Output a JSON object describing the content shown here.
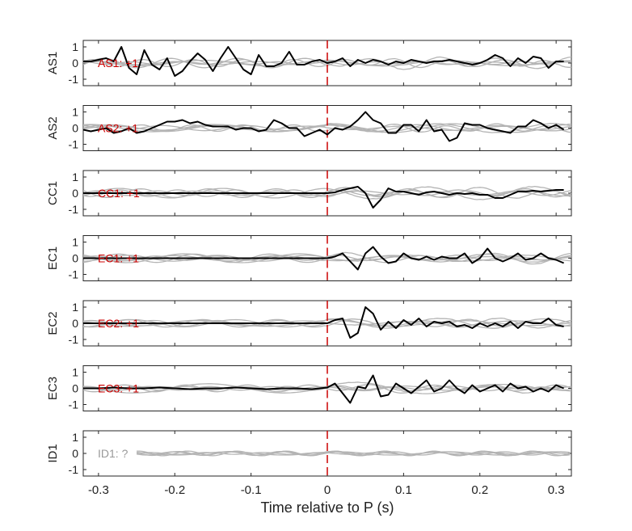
{
  "figure": {
    "xlabel": "Time relative to P (s)",
    "x_ticks": [
      "-0.3",
      "-0.2",
      "-0.1",
      "0",
      "0.1",
      "0.2",
      "0.3"
    ],
    "y_ticks": [
      "1",
      "0",
      "-1"
    ]
  },
  "colors": {
    "trace": "#000000",
    "background_traces": "#b4b4b4",
    "marker": "#cc0000",
    "polarity_label": "#cc0000",
    "unknown_label": "#999999"
  },
  "chart_data": {
    "type": "line",
    "xlim": [
      -0.32,
      0.32
    ],
    "ylim": [
      -1.4,
      1.4
    ],
    "p_arrival_x": 0,
    "panels": [
      {
        "ylabel": "AS1",
        "annotation": "AS1: +1",
        "main_x": [
          -0.32,
          -0.31,
          -0.3,
          -0.29,
          -0.28,
          -0.27,
          -0.26,
          -0.25,
          -0.24,
          -0.23,
          -0.22,
          -0.21,
          -0.2,
          -0.19,
          -0.18,
          -0.17,
          -0.16,
          -0.15,
          -0.14,
          -0.13,
          -0.12,
          -0.11,
          -0.1,
          -0.09,
          -0.08,
          -0.07,
          -0.06,
          -0.05,
          -0.04,
          -0.03,
          -0.02,
          -0.01,
          0,
          0.01,
          0.02,
          0.03,
          0.04,
          0.05,
          0.06,
          0.07,
          0.08,
          0.09,
          0.1,
          0.11,
          0.12,
          0.13,
          0.14,
          0.15,
          0.16,
          0.17,
          0.18,
          0.19,
          0.2,
          0.21,
          0.22,
          0.23,
          0.24,
          0.25,
          0.26,
          0.27,
          0.28,
          0.29,
          0.3,
          0.31
        ],
        "main_y": [
          0.1,
          0.1,
          0.2,
          0.3,
          0.1,
          1.0,
          -0.3,
          -0.7,
          0.8,
          -0.1,
          -0.4,
          0.3,
          -0.8,
          -0.5,
          0.1,
          0.6,
          0.2,
          -0.5,
          0.3,
          1.0,
          0.3,
          -0.4,
          -0.7,
          0.5,
          -0.2,
          -0.2,
          0.0,
          0.7,
          -0.1,
          -0.1,
          0.1,
          0.2,
          0.0,
          0.1,
          0.3,
          -0.2,
          0.2,
          0.0,
          0.2,
          0.1,
          -0.1,
          0.1,
          0.0,
          0.2,
          0.1,
          0.0,
          0.1,
          0.1,
          0.2,
          0.1,
          0.0,
          -0.1,
          0.0,
          0.2,
          0.5,
          0.3,
          -0.2,
          0.3,
          0.0,
          0.4,
          0.3,
          -0.3,
          0.1,
          0.1
        ]
      },
      {
        "ylabel": "AS2",
        "annotation": "AS2: +1",
        "main_x": [
          -0.32,
          -0.31,
          -0.3,
          -0.29,
          -0.28,
          -0.27,
          -0.26,
          -0.25,
          -0.24,
          -0.23,
          -0.22,
          -0.21,
          -0.2,
          -0.19,
          -0.18,
          -0.17,
          -0.16,
          -0.15,
          -0.14,
          -0.13,
          -0.12,
          -0.11,
          -0.1,
          -0.09,
          -0.08,
          -0.07,
          -0.06,
          -0.05,
          -0.04,
          -0.03,
          -0.02,
          -0.01,
          0,
          0.01,
          0.02,
          0.03,
          0.04,
          0.05,
          0.06,
          0.07,
          0.08,
          0.09,
          0.1,
          0.11,
          0.12,
          0.13,
          0.14,
          0.15,
          0.16,
          0.17,
          0.18,
          0.19,
          0.2,
          0.21,
          0.22,
          0.23,
          0.24,
          0.25,
          0.26,
          0.27,
          0.28,
          0.29,
          0.3,
          0.31
        ],
        "main_y": [
          -0.1,
          -0.2,
          -0.1,
          0.0,
          -0.3,
          -0.2,
          0.0,
          -0.3,
          -0.2,
          0.0,
          0.2,
          0.4,
          0.4,
          0.5,
          0.3,
          0.4,
          0.2,
          0.1,
          0.1,
          0.1,
          -0.1,
          0.0,
          0.0,
          -0.2,
          -0.1,
          0.5,
          0.3,
          0.0,
          0.0,
          -0.5,
          -0.3,
          -0.1,
          -0.4,
          0.0,
          -0.1,
          0.1,
          0.5,
          1.0,
          0.5,
          0.3,
          -0.3,
          -0.3,
          0.2,
          0.2,
          -0.2,
          0.5,
          -0.2,
          -0.1,
          -0.8,
          -0.6,
          0.3,
          0.2,
          0.2,
          0.0,
          -0.1,
          -0.2,
          -0.3,
          0.1,
          0.1,
          0.5,
          0.3,
          0.0,
          0.2,
          -0.1
        ]
      },
      {
        "ylabel": "CC1",
        "annotation": "CC1: +1",
        "main_x": [
          -0.32,
          -0.3,
          -0.28,
          -0.26,
          -0.24,
          -0.22,
          -0.2,
          -0.18,
          -0.16,
          -0.14,
          -0.12,
          -0.1,
          -0.08,
          -0.06,
          -0.04,
          -0.02,
          0,
          0.01,
          0.02,
          0.03,
          0.04,
          0.05,
          0.06,
          0.07,
          0.08,
          0.09,
          0.1,
          0.11,
          0.12,
          0.13,
          0.14,
          0.15,
          0.16,
          0.17,
          0.18,
          0.19,
          0.2,
          0.21,
          0.22,
          0.23,
          0.24,
          0.25,
          0.26,
          0.27,
          0.28,
          0.29,
          0.3,
          0.31
        ],
        "main_y": [
          0.0,
          0.0,
          0.0,
          0.0,
          0.0,
          0.0,
          0.0,
          0.0,
          0.0,
          0.0,
          0.0,
          0.0,
          0.0,
          0.0,
          0.0,
          0.0,
          0.0,
          0.05,
          0.2,
          0.3,
          0.4,
          0.0,
          -0.9,
          -0.4,
          0.3,
          0.1,
          0.1,
          0.0,
          -0.1,
          0.05,
          0.1,
          0.0,
          -0.1,
          0.0,
          -0.05,
          0.0,
          -0.1,
          -0.1,
          -0.3,
          -0.3,
          -0.1,
          0.1,
          0.1,
          0.15,
          0.1,
          0.15,
          0.2,
          0.2
        ]
      },
      {
        "ylabel": "EC1",
        "annotation": "EC1: +1",
        "main_x": [
          -0.32,
          -0.3,
          -0.28,
          -0.26,
          -0.24,
          -0.22,
          -0.2,
          -0.18,
          -0.16,
          -0.14,
          -0.12,
          -0.1,
          -0.08,
          -0.06,
          -0.04,
          -0.02,
          0,
          0.01,
          0.02,
          0.03,
          0.04,
          0.05,
          0.06,
          0.07,
          0.08,
          0.09,
          0.1,
          0.11,
          0.12,
          0.13,
          0.14,
          0.15,
          0.16,
          0.17,
          0.18,
          0.19,
          0.2,
          0.21,
          0.22,
          0.23,
          0.24,
          0.25,
          0.26,
          0.27,
          0.28,
          0.29,
          0.3,
          0.31
        ],
        "main_y": [
          0.0,
          0.0,
          0.0,
          0.0,
          0.0,
          0.0,
          0.0,
          0.0,
          0.0,
          0.0,
          0.0,
          0.0,
          0.0,
          0.0,
          0.0,
          0.0,
          0.0,
          0.1,
          0.3,
          -0.2,
          -0.7,
          0.3,
          0.7,
          0.1,
          -0.3,
          -0.2,
          0.3,
          0.0,
          -0.1,
          0.1,
          -0.1,
          0.1,
          0.0,
          0.0,
          0.3,
          -0.3,
          0.0,
          0.6,
          0.0,
          -0.2,
          0.0,
          0.3,
          -0.1,
          0.0,
          0.3,
          0.0,
          -0.1,
          -0.3
        ]
      },
      {
        "ylabel": "EC2",
        "annotation": "EC2: +1",
        "main_x": [
          -0.32,
          -0.3,
          -0.28,
          -0.26,
          -0.24,
          -0.22,
          -0.2,
          -0.18,
          -0.16,
          -0.14,
          -0.12,
          -0.1,
          -0.08,
          -0.06,
          -0.04,
          -0.02,
          0,
          0.01,
          0.02,
          0.03,
          0.04,
          0.05,
          0.06,
          0.07,
          0.08,
          0.09,
          0.1,
          0.11,
          0.12,
          0.13,
          0.14,
          0.15,
          0.16,
          0.17,
          0.18,
          0.19,
          0.2,
          0.21,
          0.22,
          0.23,
          0.24,
          0.25,
          0.26,
          0.27,
          0.28,
          0.29,
          0.3,
          0.31
        ],
        "main_y": [
          0.0,
          0.0,
          0.0,
          0.0,
          0.0,
          0.0,
          0.0,
          0.0,
          0.0,
          0.0,
          0.0,
          0.0,
          0.0,
          0.0,
          0.0,
          0.0,
          0.0,
          0.2,
          0.3,
          -0.9,
          -0.6,
          1.0,
          0.6,
          -0.4,
          0.1,
          -0.3,
          0.2,
          -0.1,
          0.3,
          -0.2,
          0.1,
          0.0,
          0.1,
          -0.2,
          -0.1,
          -0.3,
          0.0,
          -0.2,
          0.0,
          -0.2,
          0.1,
          -0.3,
          0.1,
          0.0,
          0.0,
          0.3,
          -0.1,
          -0.2
        ]
      },
      {
        "ylabel": "EC3",
        "annotation": "EC3: +1",
        "main_x": [
          -0.32,
          -0.3,
          -0.28,
          -0.26,
          -0.24,
          -0.22,
          -0.2,
          -0.18,
          -0.16,
          -0.14,
          -0.12,
          -0.1,
          -0.08,
          -0.06,
          -0.04,
          -0.02,
          0,
          0.01,
          0.02,
          0.03,
          0.04,
          0.05,
          0.06,
          0.07,
          0.08,
          0.09,
          0.1,
          0.11,
          0.12,
          0.13,
          0.14,
          0.15,
          0.16,
          0.17,
          0.18,
          0.19,
          0.2,
          0.21,
          0.22,
          0.23,
          0.24,
          0.25,
          0.26,
          0.27,
          0.28,
          0.29,
          0.3,
          0.31
        ],
        "main_y": [
          0.0,
          0.0,
          0.05,
          0.0,
          0.0,
          0.05,
          0.0,
          -0.05,
          0.0,
          0.0,
          0.05,
          0.0,
          -0.05,
          0.0,
          0.0,
          -0.05,
          0.05,
          0.3,
          -0.3,
          -0.9,
          0.1,
          0.0,
          0.8,
          -0.5,
          -0.4,
          0.3,
          0.0,
          -0.3,
          0.1,
          0.5,
          -0.2,
          0.0,
          0.5,
          0.0,
          -0.3,
          0.2,
          -0.2,
          0.0,
          0.2,
          -0.2,
          0.3,
          0.0,
          0.1,
          -0.2,
          0.0,
          -0.2,
          0.2,
          0.0
        ]
      },
      {
        "ylabel": "ID1",
        "annotation": "ID1: ?",
        "main_x": [],
        "main_y": []
      }
    ]
  }
}
